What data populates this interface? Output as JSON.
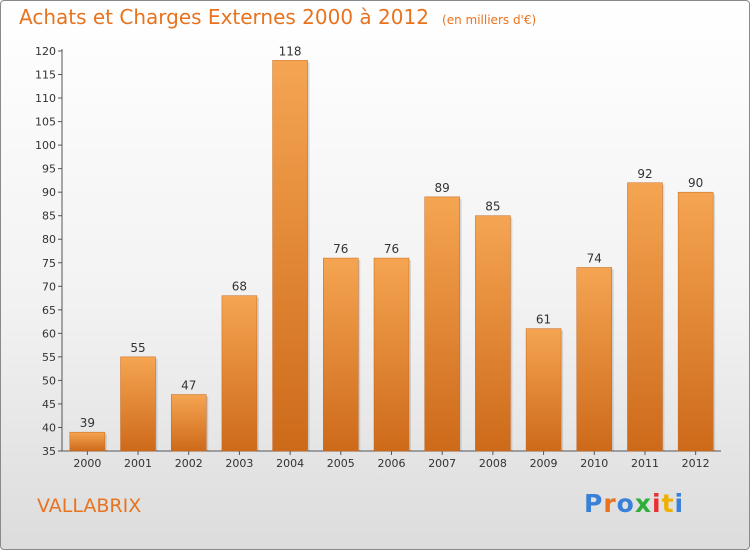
{
  "header": {
    "title": "Achats et Charges Externes 2000 à 2012",
    "unit": "(en milliers d'€)"
  },
  "footer": {
    "commune": "VALLABRIX",
    "brand": "Proxiti",
    "brand_colors": [
      "#3a7fd8",
      "#e8731f",
      "#3a7fd8",
      "#2fae3a",
      "#e83030",
      "#f0b000",
      "#3a7fd8"
    ]
  },
  "colors": {
    "accent": "#e8731f",
    "bar_top": "#f5a552",
    "bar_bottom": "#cd6a1a"
  },
  "chart_data": {
    "type": "bar",
    "title": "Achats et Charges Externes 2000 à 2012",
    "xlabel": "",
    "ylabel": "",
    "categories": [
      "2000",
      "2001",
      "2002",
      "2003",
      "2004",
      "2005",
      "2006",
      "2007",
      "2008",
      "2009",
      "2010",
      "2011",
      "2012"
    ],
    "values": [
      39,
      55,
      47,
      68,
      118,
      76,
      76,
      89,
      85,
      61,
      74,
      92,
      90
    ],
    "ylim": [
      35,
      120
    ],
    "yticks": [
      35,
      40,
      45,
      50,
      55,
      60,
      65,
      70,
      75,
      80,
      85,
      90,
      95,
      100,
      105,
      110,
      115,
      120
    ],
    "grid": false,
    "legend": "none"
  }
}
